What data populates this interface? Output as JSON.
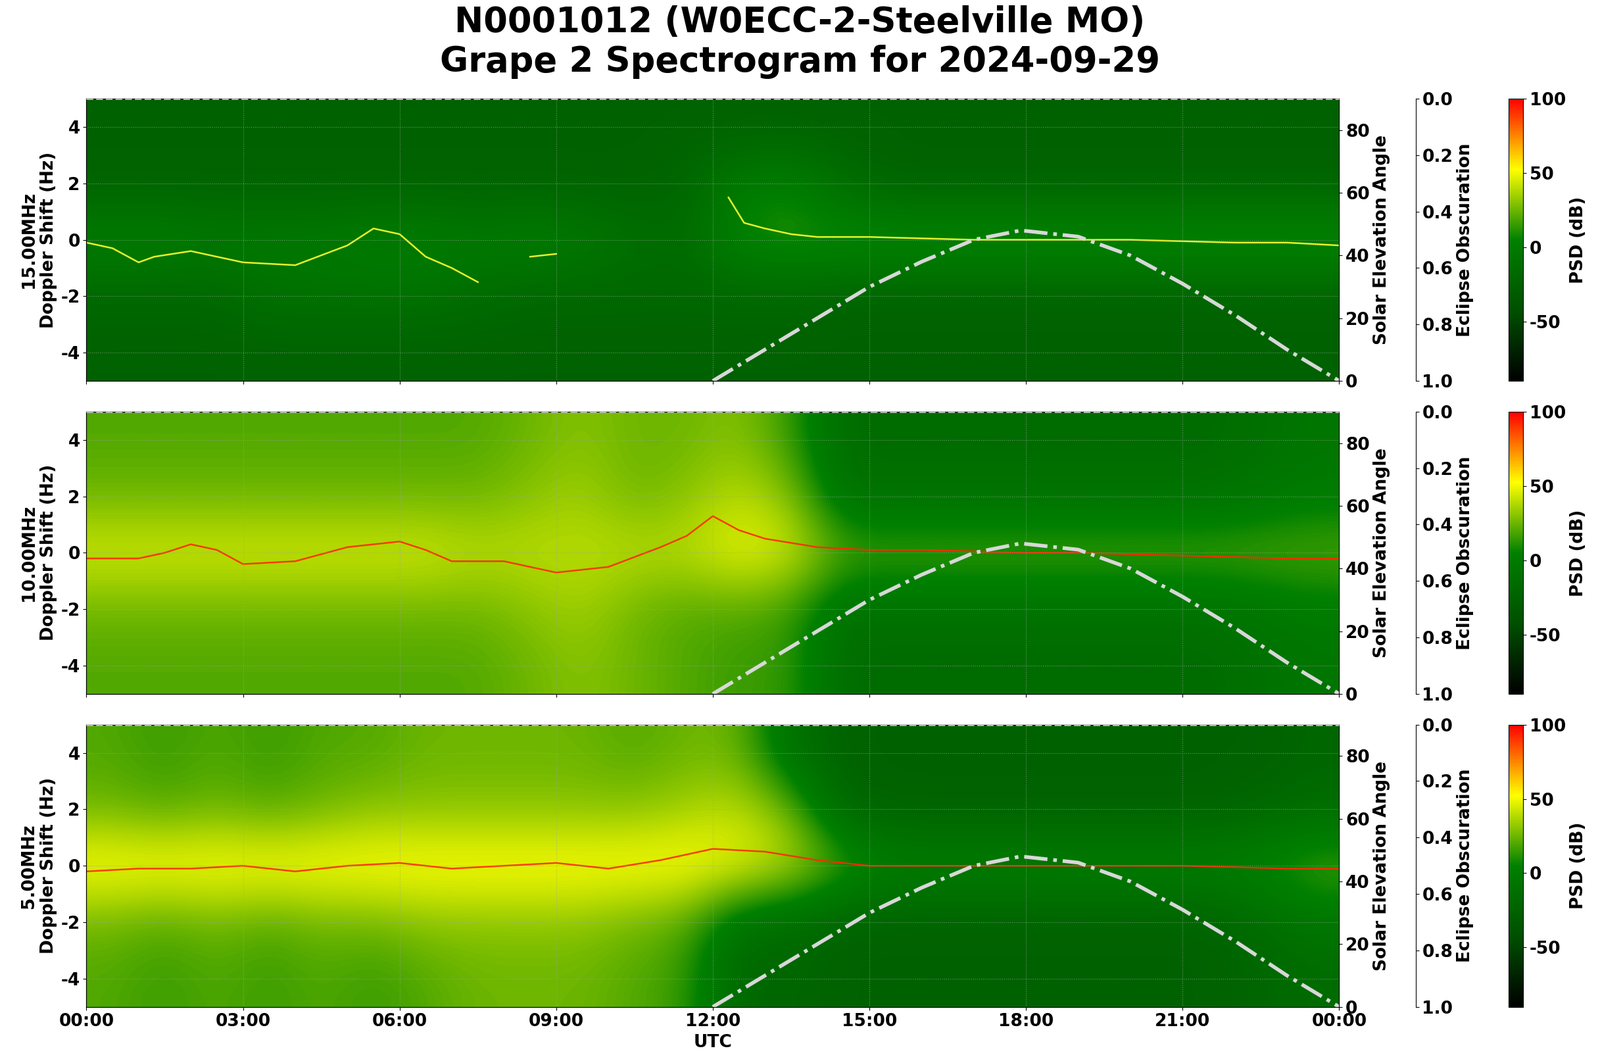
{
  "title": "N0001012 (W0ECC-2-Steelville MO)\nGrape 2 Spectrogram for 2024-09-29",
  "xlabel": "UTC",
  "xlim": [
    0,
    24
  ],
  "xticks": [
    {
      "value": 0,
      "label": "00:00"
    },
    {
      "value": 3,
      "label": "03:00"
    },
    {
      "value": 6,
      "label": "06:00"
    },
    {
      "value": 9,
      "label": "09:00"
    },
    {
      "value": 12,
      "label": "12:00"
    },
    {
      "value": 15,
      "label": "15:00"
    },
    {
      "value": 18,
      "label": "18:00"
    },
    {
      "value": 21,
      "label": "21:00"
    },
    {
      "value": 24,
      "label": "00:00"
    }
  ],
  "grid": true,
  "colors": [
    "#000000",
    "#005000",
    "#008000",
    "#ffff00",
    "#ff0000"
  ],
  "colorbar": {
    "label": "PSD (dB)",
    "range": [
      -90,
      100
    ],
    "ticks": [
      -50,
      0,
      50,
      100
    ]
  },
  "y2label": "Solar Elevation Angle",
  "y2lim": [
    0,
    90
  ],
  "y2ticks": [
    0,
    20,
    40,
    60,
    80
  ],
  "y3label": "Eclipse Obscuration",
  "y3lim": [
    1.0,
    0.0
  ],
  "y3ticks": [
    {
      "value": 0.0,
      "label": "0.0"
    },
    {
      "value": 0.2,
      "label": "0.2"
    },
    {
      "value": 0.4,
      "label": "0.4"
    },
    {
      "value": 0.6,
      "label": "0.6"
    },
    {
      "value": 0.8,
      "label": "0.8"
    },
    {
      "value": 1.0,
      "label": "1.0"
    }
  ],
  "solar_elevation": {
    "name": "Solar Elevation Angle",
    "color": "#d8d8d8",
    "line_style": "dashdot",
    "x": [
      12,
      13,
      14,
      15,
      16,
      17,
      17.9,
      19,
      20,
      21,
      22,
      23,
      24
    ],
    "values": [
      0,
      10,
      20,
      30,
      38,
      45,
      48,
      46,
      40,
      31,
      21,
      10,
      0
    ]
  },
  "eclipse_obscuration": {
    "name": "Eclipse Obscuration",
    "color": "#bbbbbb",
    "line_style": "dashed",
    "x": [
      0,
      24
    ],
    "values": [
      0,
      0
    ]
  },
  "chart_data": [
    {
      "type": "heatmap",
      "ylabel": "15.00MHz\nDoppler Shift (Hz)",
      "ylim": [
        -5,
        5
      ],
      "yticks": [
        -4,
        -2,
        0,
        2,
        4
      ],
      "tick_labels": "y",
      "cells": [
        [
          -25,
          -25,
          -25,
          -25,
          -25,
          -25,
          -25,
          -25,
          -25,
          -25,
          -25,
          -25,
          -25,
          -25,
          -25,
          -25,
          -25,
          -25,
          -25,
          -25,
          -25,
          -25,
          -25,
          -25
        ],
        [
          -20,
          -20,
          -20,
          -10,
          -10,
          -10,
          -10,
          -15,
          -20,
          -20,
          -20,
          -20,
          -20,
          -20,
          -25,
          -25,
          -25,
          -25,
          -25,
          -25,
          -25,
          -25,
          -25,
          -25
        ],
        [
          5,
          5,
          0,
          0,
          0,
          5,
          5,
          0,
          5,
          0,
          -10,
          -15,
          10,
          15,
          15,
          15,
          15,
          15,
          15,
          15,
          15,
          15,
          15,
          15
        ],
        [
          -25,
          -25,
          -25,
          -25,
          -25,
          -25,
          -25,
          -25,
          -25,
          -25,
          -25,
          -20,
          0,
          5,
          -15,
          -25,
          -25,
          -25,
          -25,
          -25,
          -25,
          -25,
          -25,
          -25
        ],
        [
          -25,
          -25,
          -25,
          -25,
          -25,
          -25,
          -25,
          -25,
          -25,
          -25,
          -25,
          -25,
          -25,
          -25,
          -25,
          -25,
          -25,
          -25,
          -25,
          -25,
          -25,
          -25,
          -25,
          -25
        ]
      ],
      "series": [
        {
          "name": "15.00MHz",
          "color": "#ffff33",
          "x": [
            0,
            0.5,
            1,
            1.3,
            2,
            3,
            4,
            5,
            5.5,
            6,
            6.5,
            7,
            7.5,
            8,
            8.5,
            9,
            10,
            11,
            12,
            12.3,
            12.6,
            13,
            13.5,
            14,
            15,
            16,
            17,
            18,
            19,
            20,
            21,
            22,
            23,
            24
          ],
          "values": [
            -0.1,
            -0.3,
            -0.8,
            -0.6,
            -0.4,
            -0.8,
            -0.9,
            -0.2,
            0.4,
            0.2,
            -0.6,
            -1.0,
            -1.5,
            null,
            -0.6,
            -0.5,
            null,
            null,
            null,
            1.5,
            0.6,
            0.4,
            0.2,
            0.1,
            0.1,
            0.05,
            0.0,
            0.0,
            0.0,
            0.0,
            -0.05,
            -0.1,
            -0.1,
            -0.2
          ]
        }
      ]
    },
    {
      "type": "heatmap",
      "ylabel": "10.00MHz\nDoppler Shift (Hz)",
      "ylim": [
        -5,
        5
      ],
      "yticks": [
        -4,
        -2,
        0,
        2,
        4
      ],
      "tick_labels": "y",
      "cells": [
        [
          20,
          20,
          20,
          20,
          20,
          20,
          20,
          20,
          25,
          30,
          25,
          20,
          15,
          15,
          -15,
          -15,
          -15,
          -15,
          -15,
          -15,
          -15,
          -15,
          -10,
          -5
        ],
        [
          25,
          25,
          25,
          25,
          25,
          25,
          25,
          25,
          30,
          35,
          25,
          20,
          20,
          15,
          -10,
          -10,
          -10,
          -10,
          -10,
          -10,
          -10,
          -10,
          -5,
          0
        ],
        [
          45,
          45,
          45,
          45,
          45,
          45,
          45,
          40,
          40,
          40,
          40,
          40,
          50,
          45,
          20,
          20,
          20,
          20,
          20,
          20,
          20,
          20,
          20,
          20
        ],
        [
          25,
          25,
          25,
          25,
          25,
          25,
          25,
          25,
          30,
          35,
          25,
          30,
          40,
          30,
          -10,
          -10,
          -10,
          -10,
          -10,
          -10,
          -10,
          -10,
          -5,
          0
        ],
        [
          20,
          20,
          20,
          20,
          20,
          20,
          20,
          20,
          25,
          30,
          25,
          25,
          30,
          15,
          -15,
          -15,
          -15,
          -15,
          -15,
          -15,
          -15,
          -15,
          -10,
          -5
        ]
      ],
      "series": [
        {
          "name": "10.00MHz",
          "color": "#ff2a00",
          "x": [
            0,
            1,
            1.5,
            2,
            2.5,
            3,
            4,
            5,
            6,
            6.5,
            7,
            8,
            9,
            10,
            11,
            11.5,
            12,
            12.5,
            13,
            14,
            15,
            16,
            17,
            18,
            19,
            20,
            21,
            22,
            23,
            24
          ],
          "values": [
            -0.2,
            -0.2,
            0.0,
            0.3,
            0.1,
            -0.4,
            -0.3,
            0.2,
            0.4,
            0.1,
            -0.3,
            -0.3,
            -0.7,
            -0.5,
            0.2,
            0.6,
            1.3,
            0.8,
            0.5,
            0.2,
            0.1,
            0.1,
            0.05,
            0.0,
            0.0,
            -0.05,
            -0.1,
            -0.15,
            -0.2,
            -0.2
          ]
        }
      ]
    },
    {
      "type": "heatmap",
      "ylabel": "5.00MHz\nDoppler Shift (Hz)",
      "ylim": [
        -5,
        5
      ],
      "yticks": [
        -4,
        -2,
        0,
        2,
        4
      ],
      "tick_labels": true,
      "cells": [
        [
          20,
          15,
          20,
          15,
          20,
          15,
          20,
          25,
          25,
          25,
          20,
          15,
          -20,
          -20,
          -25,
          -25,
          -25,
          -25,
          -25,
          -25,
          -25,
          -25,
          -20,
          -15
        ],
        [
          25,
          20,
          25,
          20,
          25,
          25,
          30,
          30,
          30,
          30,
          25,
          20,
          -10,
          -15,
          -25,
          -25,
          -25,
          -25,
          -25,
          -25,
          -25,
          -25,
          -15,
          -5
        ],
        [
          55,
          55,
          55,
          55,
          55,
          55,
          55,
          55,
          55,
          55,
          55,
          55,
          50,
          40,
          20,
          5,
          5,
          5,
          5,
          5,
          5,
          5,
          10,
          20
        ],
        [
          25,
          20,
          25,
          20,
          25,
          30,
          30,
          30,
          30,
          30,
          30,
          35,
          40,
          25,
          -20,
          -25,
          -25,
          -25,
          -25,
          -25,
          -25,
          -25,
          -20,
          -15
        ],
        [
          20,
          15,
          20,
          15,
          20,
          20,
          25,
          25,
          25,
          25,
          20,
          25,
          25,
          -10,
          -25,
          -25,
          -25,
          -25,
          -25,
          -25,
          -25,
          -25,
          -25,
          -20
        ]
      ],
      "series": [
        {
          "name": "5.00MHz",
          "color": "#ff2a00",
          "x": [
            0,
            1,
            2,
            3,
            4,
            5,
            6,
            7,
            8,
            9,
            10,
            11,
            12,
            13,
            14,
            15,
            16,
            17,
            18,
            19,
            20,
            21,
            22,
            23,
            24
          ],
          "values": [
            -0.2,
            -0.1,
            -0.1,
            0.0,
            -0.2,
            0.0,
            0.1,
            -0.1,
            0.0,
            0.1,
            -0.1,
            0.2,
            0.6,
            0.5,
            0.2,
            0.0,
            0.0,
            0.0,
            0.0,
            0.0,
            0.0,
            0.0,
            -0.05,
            -0.1,
            -0.1
          ]
        }
      ]
    }
  ]
}
